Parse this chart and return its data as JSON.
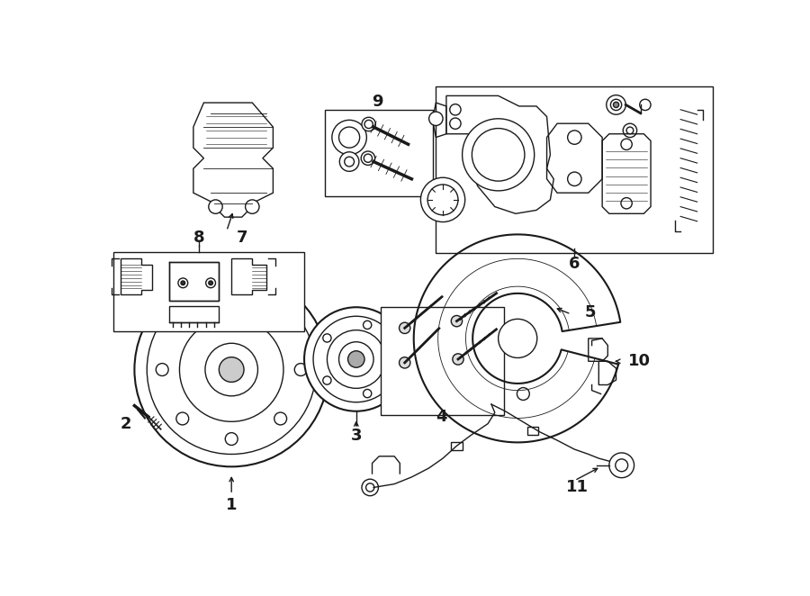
{
  "bg_color": "#ffffff",
  "line_color": "#1a1a1a",
  "fig_width": 9.0,
  "fig_height": 6.62,
  "dpi": 100,
  "lw_main": 1.0,
  "lw_thick": 1.5,
  "lw_thin": 0.6,
  "label_fs": 13
}
